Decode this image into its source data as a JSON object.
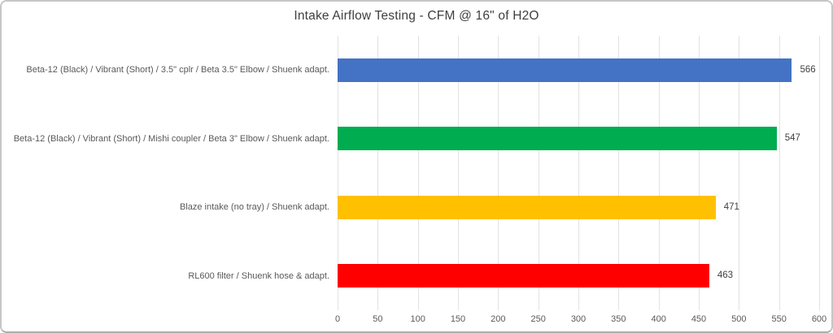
{
  "chart_data": {
    "type": "bar",
    "orientation": "horizontal",
    "title": "Intake Airflow Testing - CFM @ 16\" of H2O",
    "categories": [
      "Beta-12 (Black) / Vibrant (Short) / 3.5\" cplr / Beta 3.5\" Elbow / Shuenk adapt.",
      "Beta-12 (Black) / Vibrant (Short) / Mishi coupler / Beta 3\" Elbow / Shuenk adapt.",
      "Blaze intake (no tray) / Shuenk adapt.",
      "RL600 filter / Shuenk hose & adapt."
    ],
    "values": [
      566,
      547,
      471,
      463
    ],
    "bar_colors": [
      "#4472c4",
      "#00ac50",
      "#ffc000",
      "#ff0000"
    ],
    "value_labels_shown": true,
    "xlabel": "",
    "ylabel": "",
    "xlim": [
      0,
      600
    ],
    "xticks": [
      0,
      50,
      100,
      150,
      200,
      250,
      300,
      350,
      400,
      450,
      500,
      550,
      600
    ],
    "grid": "vertical",
    "legend": "none",
    "colors": {
      "title_text": "#3f3f3f",
      "axis_text": "#595959",
      "gridline": "#e2e2e2",
      "background": "#ffffff",
      "frame_border": "#c6c6c6"
    }
  }
}
